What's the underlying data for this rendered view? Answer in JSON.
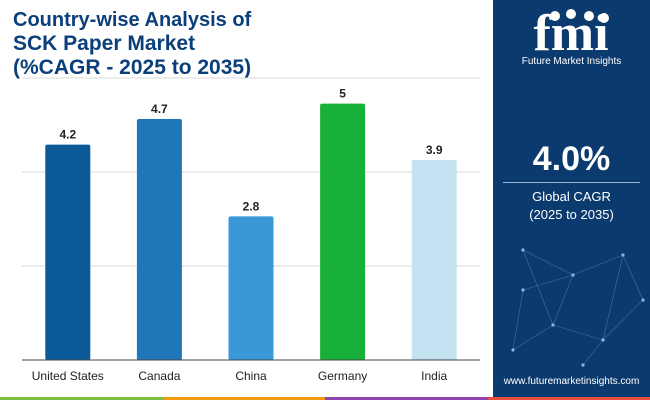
{
  "title": {
    "line1": "Country-wise Analysis of",
    "line2": "SCK Paper Market",
    "line3": "(%CAGR - 2025 to 2035)"
  },
  "brand": {
    "logo_text": "fmi",
    "name": "Future Market Insights",
    "url": "www.futuremarketinsights.com",
    "panel_color": "#0b3a6e"
  },
  "summary": {
    "value": "4.0%",
    "label_line1": "Global CAGR",
    "label_line2": "(2025 to 2035)"
  },
  "chart_data": {
    "type": "bar",
    "categories": [
      "United States",
      "Canada",
      "China",
      "Germany",
      "India"
    ],
    "values": [
      4.2,
      4.7,
      2.8,
      5,
      3.9
    ],
    "data_labels": [
      "4.2",
      "4.7",
      "2.8",
      "5",
      "3.9"
    ],
    "colors": [
      "#0a5a99",
      "#1f76b8",
      "#3a98d8",
      "#17b13a",
      "#c5e2f3"
    ],
    "ylim": [
      0,
      5.5
    ],
    "grid": true,
    "title": "",
    "xlabel": "",
    "ylabel": ""
  },
  "accent_strip": [
    "#7ac143",
    "#f39c12",
    "#8e44ad",
    "#e74c3c"
  ]
}
